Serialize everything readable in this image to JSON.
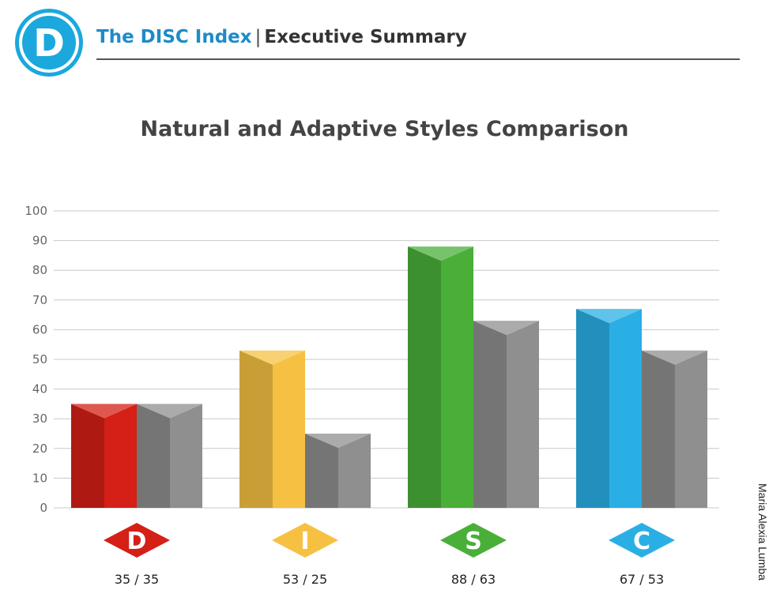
{
  "header": {
    "logo_letter": "D",
    "brand": "The DISC Index",
    "separator": "|",
    "subtitle": "Executive Summary"
  },
  "side_caption": "Maria Alexia Lumba",
  "colors": {
    "accent": "#1f8bc6",
    "D": "#d42016",
    "I": "#f6c143",
    "S": "#4aaf39",
    "C": "#2aafe5",
    "adaptive": "#8f8f8f"
  },
  "chart_data": {
    "type": "bar",
    "title": "Natural and Adaptive Styles Comparison",
    "categories": [
      "D",
      "I",
      "S",
      "C"
    ],
    "series": [
      {
        "values": [
          35,
          53,
          88,
          67
        ]
      },
      {
        "values": [
          35,
          25,
          63,
          53
        ]
      }
    ],
    "pair_labels": [
      "35 / 35",
      "53 / 25",
      "88 / 63",
      "67 / 53"
    ],
    "ylim": [
      0,
      100
    ],
    "yticks": [
      0,
      10,
      20,
      30,
      40,
      50,
      60,
      70,
      80,
      90,
      100
    ],
    "grid": true,
    "style": "3d-prism"
  }
}
